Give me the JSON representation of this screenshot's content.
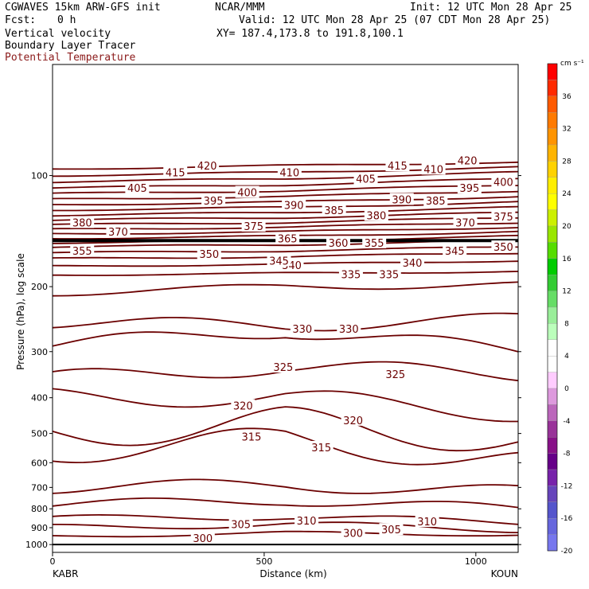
{
  "header": {
    "model": "CGWAVES 15km ARW-GFS init",
    "org": "NCAR/MMM",
    "init": "Init: 12 UTC Mon 28 Apr 25",
    "fcst_label": "Fcst:",
    "fcst_value": "0 h",
    "valid": "Valid: 12 UTC Mon 28 Apr 25 (07 CDT Mon 28 Apr 25)",
    "field1": "Vertical velocity",
    "xy": "XY= 187.4,173.8 to 191.8,100.1",
    "field2": "Boundary Layer Tracer",
    "field3": "Potential Temperature",
    "field3_color": "#8b1a1a"
  },
  "chart_data": {
    "type": "contour-cross-section",
    "xlabel": "Distance (km)",
    "ylabel": "Pressure (hPa), log scale",
    "x_ticks": [
      0,
      500,
      1000
    ],
    "y_ticks": [
      100,
      200,
      300,
      400,
      500,
      600,
      700,
      800,
      900,
      1000
    ],
    "endpoints": {
      "left": "KABR",
      "right": "KOUN"
    },
    "contour_color": "#6b0000",
    "contour_labels": [
      {
        "text": "300",
        "x": 355,
        "p": 960
      },
      {
        "text": "300",
        "x": 710,
        "p": 930
      },
      {
        "text": "305",
        "x": 445,
        "p": 880
      },
      {
        "text": "305",
        "x": 800,
        "p": 910
      },
      {
        "text": "310",
        "x": 600,
        "p": 860
      },
      {
        "text": "310",
        "x": 885,
        "p": 865
      },
      {
        "text": "315",
        "x": 470,
        "p": 510
      },
      {
        "text": "315",
        "x": 635,
        "p": 545
      },
      {
        "text": "320",
        "x": 450,
        "p": 420
      },
      {
        "text": "320",
        "x": 710,
        "p": 460
      },
      {
        "text": "325",
        "x": 545,
        "p": 330
      },
      {
        "text": "325",
        "x": 810,
        "p": 345
      },
      {
        "text": "330",
        "x": 590,
        "p": 260
      },
      {
        "text": "330",
        "x": 700,
        "p": 260
      },
      {
        "text": "335",
        "x": 705,
        "p": 185
      },
      {
        "text": "335",
        "x": 795,
        "p": 185
      },
      {
        "text": "340",
        "x": 565,
        "p": 175
      },
      {
        "text": "340",
        "x": 850,
        "p": 172
      },
      {
        "text": "345",
        "x": 535,
        "p": 170
      },
      {
        "text": "345",
        "x": 950,
        "p": 160
      },
      {
        "text": "350",
        "x": 370,
        "p": 163
      },
      {
        "text": "350",
        "x": 1065,
        "p": 156
      },
      {
        "text": "355",
        "x": 70,
        "p": 160
      },
      {
        "text": "355",
        "x": 760,
        "p": 152
      },
      {
        "text": "360",
        "x": 675,
        "p": 152
      },
      {
        "text": "365",
        "x": 555,
        "p": 148
      },
      {
        "text": "370",
        "x": 155,
        "p": 142
      },
      {
        "text": "370",
        "x": 975,
        "p": 134
      },
      {
        "text": "375",
        "x": 475,
        "p": 137
      },
      {
        "text": "375",
        "x": 1065,
        "p": 129
      },
      {
        "text": "380",
        "x": 70,
        "p": 134
      },
      {
        "text": "380",
        "x": 765,
        "p": 128
      },
      {
        "text": "385",
        "x": 665,
        "p": 124
      },
      {
        "text": "385",
        "x": 905,
        "p": 117
      },
      {
        "text": "390",
        "x": 570,
        "p": 120
      },
      {
        "text": "390",
        "x": 825,
        "p": 116
      },
      {
        "text": "395",
        "x": 380,
        "p": 117
      },
      {
        "text": "395",
        "x": 985,
        "p": 108
      },
      {
        "text": "400",
        "x": 460,
        "p": 111
      },
      {
        "text": "400",
        "x": 1065,
        "p": 104
      },
      {
        "text": "405",
        "x": 200,
        "p": 108
      },
      {
        "text": "405",
        "x": 740,
        "p": 102
      },
      {
        "text": "410",
        "x": 560,
        "p": 98
      },
      {
        "text": "410",
        "x": 900,
        "p": 96
      },
      {
        "text": "415",
        "x": 290,
        "p": 98
      },
      {
        "text": "415",
        "x": 815,
        "p": 94
      },
      {
        "text": "420",
        "x": 365,
        "p": 94
      },
      {
        "text": "420",
        "x": 980,
        "p": 91
      }
    ],
    "colorbar": {
      "unit": "cm s⁻¹",
      "levels": [
        36,
        32,
        28,
        24,
        20,
        16,
        12,
        8,
        4,
        0,
        -4,
        -8,
        -12,
        -16,
        -20
      ],
      "colors": [
        "#ff0000",
        "#ff2a00",
        "#ff5a00",
        "#ff7a00",
        "#ff9400",
        "#ffb400",
        "#ffd200",
        "#ffee00",
        "#ffff00",
        "#ccf000",
        "#99e600",
        "#55dd00",
        "#00cc00",
        "#33cc33",
        "#66dd66",
        "#99ee99",
        "#bbffbb",
        "#ffffff",
        "#ffffff",
        "#ffccff",
        "#dd99dd",
        "#bb66bb",
        "#993399",
        "#881188",
        "#660088",
        "#7722aa",
        "#6644bb",
        "#5555cc",
        "#6666dd",
        "#7777ee"
      ]
    }
  }
}
